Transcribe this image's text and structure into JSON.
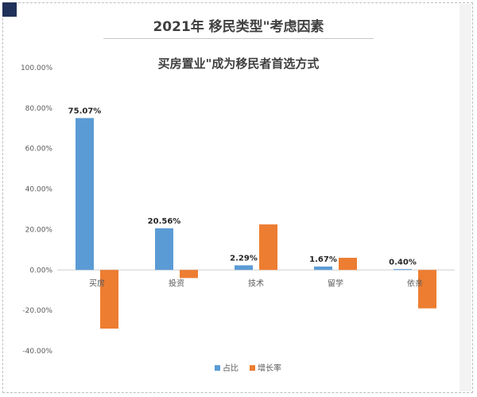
{
  "page_title": "2021年 移民类型\"考虑因素",
  "chart_data": {
    "type": "bar",
    "title": "买房置业\"成为移民者首选方式",
    "categories": [
      "买房",
      "投资",
      "技术",
      "留学",
      "依亲"
    ],
    "series": [
      {
        "name": "占比",
        "color": "#5b9bd5",
        "values": [
          75.07,
          20.56,
          2.29,
          1.67,
          0.4
        ],
        "labels": [
          "75.07%",
          "20.56%",
          "2.29%",
          "1.67%",
          "0.40%"
        ]
      },
      {
        "name": "增长率",
        "color": "#ed7d31",
        "values": [
          -29,
          -4,
          22.5,
          6,
          -19
        ]
      }
    ],
    "ylim": [
      -40,
      100
    ],
    "yticks": [
      100,
      80,
      60,
      40,
      20,
      0,
      -20,
      -40
    ],
    "ytick_labels": [
      "100.00%",
      "80.00%",
      "60.00%",
      "40.00%",
      "20.00%",
      "0.00%",
      "-20.00%",
      "-40.00%"
    ],
    "legend_position": "bottom",
    "grid": false
  }
}
